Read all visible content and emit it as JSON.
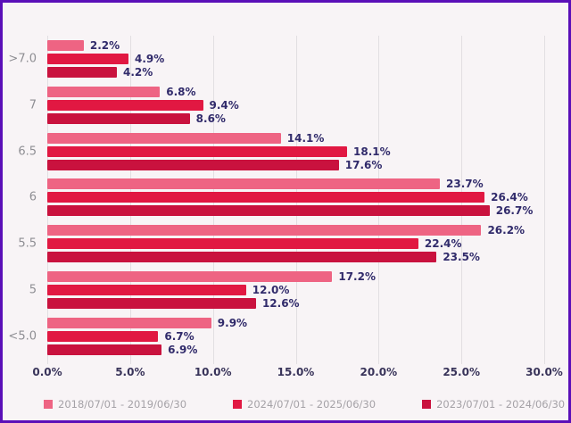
{
  "frame": {
    "border_color": "#5A0FB8",
    "background_color": "#F8F4F6",
    "gridline_color": "#E2DFE2"
  },
  "chart_data": {
    "type": "bar",
    "orientation": "horizontal",
    "title": "",
    "xlabel": "",
    "ylabel": "",
    "categories": [
      ">7.0",
      "7",
      "6.5",
      "6",
      "5.5",
      "5",
      "<5.0"
    ],
    "series": [
      {
        "name": "2018/07/01 - 2019/06/30",
        "color": "#EE6483",
        "values": [
          2.2,
          6.8,
          14.1,
          23.7,
          26.2,
          17.2,
          9.9
        ]
      },
      {
        "name": "2024/07/01 - 2025/06/30",
        "color": "#E11842",
        "values": [
          4.9,
          9.4,
          18.1,
          26.4,
          22.4,
          12.0,
          6.7
        ]
      },
      {
        "name": "2023/07/01 - 2024/06/30",
        "color": "#C9123E",
        "values": [
          4.2,
          8.6,
          17.6,
          26.7,
          23.5,
          12.6,
          6.9
        ]
      }
    ],
    "value_suffix": "%",
    "value_decimals": 1,
    "xlim": [
      0,
      30
    ],
    "x_ticks": [
      "0.0%",
      "5.0%",
      "10.0%",
      "15.0%",
      "20.0%",
      "25.0%",
      "30.0%"
    ],
    "grid": true,
    "legend_position": "bottom",
    "data_label_color": "#312B6B",
    "tick_label_color": "#39345A",
    "category_label_color": "#8E8E93",
    "legend_text_color": "#A5A2A7"
  }
}
